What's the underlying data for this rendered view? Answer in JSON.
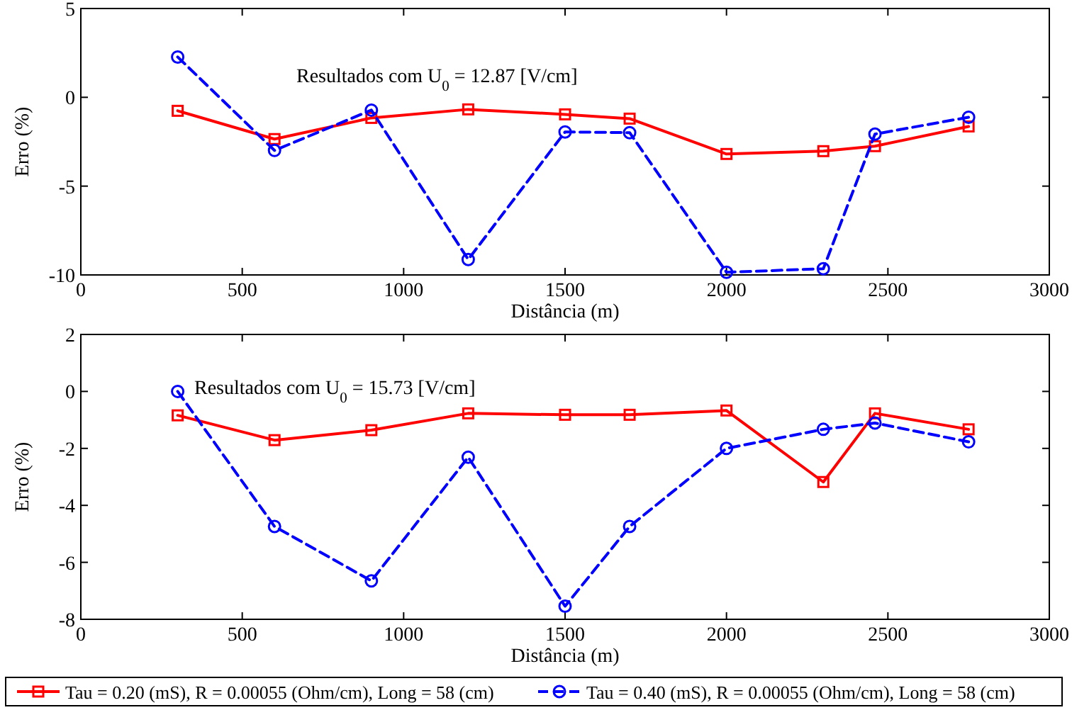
{
  "chart_data": [
    {
      "type": "line",
      "annotations": [
        "Resultados com U$_{0}$ = 12.87 [V/cm]"
      ],
      "xlabel": "Distância (m)",
      "ylabel": "Erro (%)",
      "x": [
        300,
        600,
        900,
        1200,
        1500,
        1700,
        2000,
        2300,
        2460,
        2750
      ],
      "xlim": [
        0,
        3000
      ],
      "xticks": [
        0,
        500,
        1000,
        1500,
        2000,
        2500,
        3000
      ],
      "ylim": [
        -10,
        5
      ],
      "yticks": [
        -10,
        -5,
        0,
        5
      ],
      "grid": false,
      "legend": false,
      "series": [
        {
          "color": "#ff0000",
          "marker": "square",
          "line_style": "solid",
          "values": [
            -0.76,
            -2.35,
            -1.16,
            -0.68,
            -0.96,
            -1.2,
            -3.19,
            -3.03,
            -2.75,
            -1.64
          ]
        },
        {
          "color": "#0000ff",
          "marker": "circle",
          "line_style": "dashed",
          "values": [
            2.27,
            -2.99,
            -0.72,
            -9.13,
            -1.95,
            -1.99,
            -9.85,
            -9.65,
            -2.07,
            -1.12
          ]
        }
      ]
    },
    {
      "type": "line",
      "annotations": [
        "Resultados com U$_{0}$ = 15.73 [V/cm]"
      ],
      "xlabel": "Distância (m)",
      "ylabel": "Erro (%)",
      "x": [
        300,
        600,
        900,
        1200,
        1500,
        1700,
        2000,
        2300,
        2460,
        2750
      ],
      "xlim": [
        0,
        3000
      ],
      "xticks": [
        0,
        500,
        1000,
        1500,
        2000,
        2500,
        3000
      ],
      "ylim": [
        -8,
        2
      ],
      "yticks": [
        -8,
        -6,
        -4,
        -2,
        0,
        2
      ],
      "grid": false,
      "legend": "bottom",
      "series": [
        {
          "name": "Tau = 0.20 (mS), R = 0.00055 (Ohm/cm), Long = 58 (cm)",
          "color": "#ff0000",
          "marker": "square",
          "line_style": "solid",
          "values": [
            -0.84,
            -1.71,
            -1.36,
            -0.77,
            -0.82,
            -0.82,
            -0.67,
            -3.18,
            -0.77,
            -1.33
          ]
        },
        {
          "name": "Tau = 0.40 (mS), R = 0.00055 (Ohm/cm), Long = 58 (cm)",
          "color": "#0000ff",
          "marker": "circle",
          "line_style": "dashed",
          "values": [
            0.0,
            -4.74,
            -6.65,
            -2.31,
            -7.54,
            -4.74,
            -2.0,
            -1.33,
            -1.11,
            -1.77
          ]
        }
      ]
    }
  ]
}
